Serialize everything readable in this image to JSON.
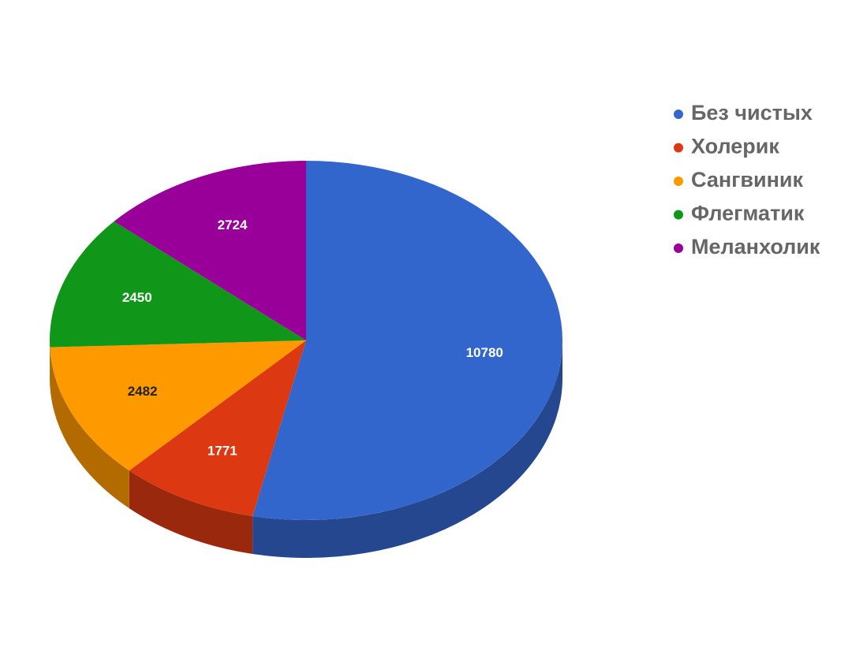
{
  "chart_data": {
    "type": "pie3d",
    "categories": [
      "Без чистых",
      "Холерик",
      "Сангвиник",
      "Флегматик",
      "Меланхолик"
    ],
    "values": [
      10780,
      1771,
      2482,
      2450,
      2724
    ],
    "colors": [
      "#3366cc",
      "#dc3912",
      "#ff9900",
      "#109618",
      "#990099"
    ],
    "legend": "right"
  }
}
